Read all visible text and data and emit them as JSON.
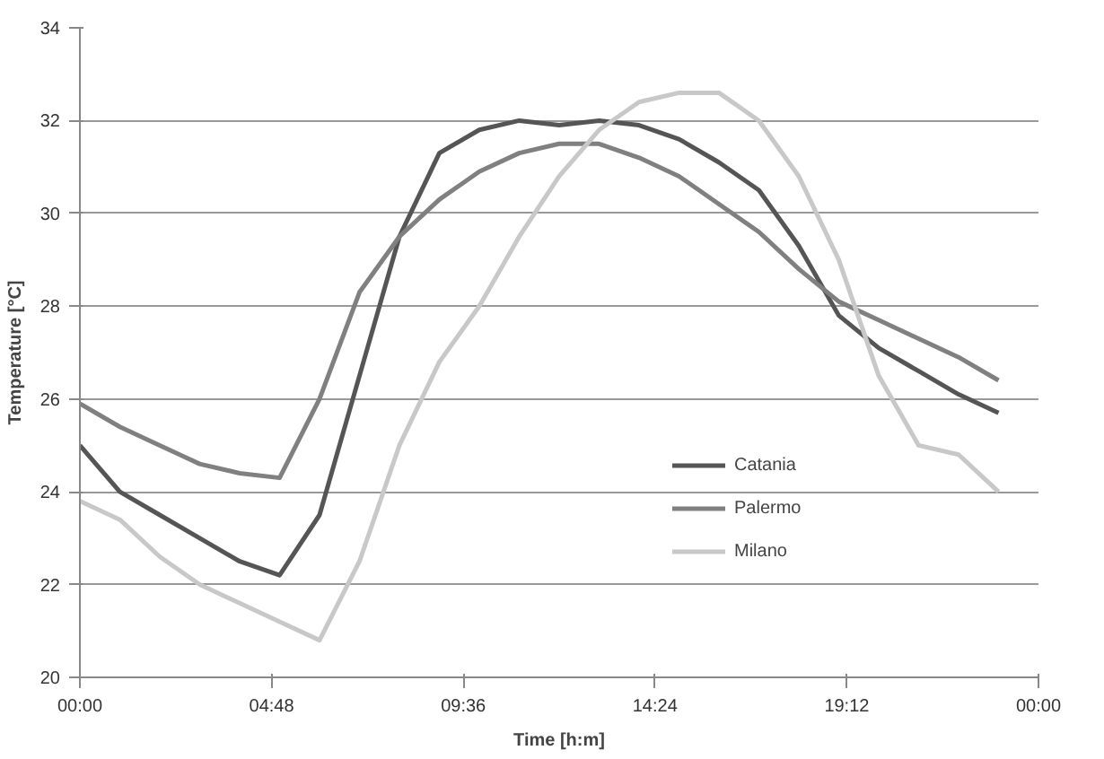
{
  "chart_data": {
    "type": "line",
    "xlabel": "Time [h:m]",
    "ylabel": "Temperature [°C]",
    "x": [
      0,
      1,
      2,
      3,
      4,
      5,
      6,
      7,
      8,
      9,
      10,
      11,
      12,
      13,
      14,
      15,
      16,
      17,
      18,
      19,
      20,
      21,
      22,
      23
    ],
    "series": [
      {
        "name": "Catania",
        "color": "#555555",
        "values": [
          25.0,
          24.0,
          23.5,
          23.0,
          22.5,
          22.2,
          23.5,
          26.5,
          29.5,
          31.3,
          31.8,
          32.0,
          31.9,
          32.0,
          31.9,
          31.6,
          31.1,
          30.5,
          29.3,
          27.8,
          27.1,
          26.6,
          26.1,
          25.7
        ]
      },
      {
        "name": "Palermo",
        "color": "#808080",
        "values": [
          25.9,
          25.4,
          25.0,
          24.6,
          24.4,
          24.3,
          26.0,
          28.3,
          29.5,
          30.3,
          30.9,
          31.3,
          31.5,
          31.5,
          31.2,
          30.8,
          30.2,
          29.6,
          28.8,
          28.1,
          27.7,
          27.3,
          26.9,
          26.4
        ]
      },
      {
        "name": "Milano",
        "color": "#c8c8c8",
        "values": [
          23.8,
          23.4,
          22.6,
          22.0,
          21.6,
          21.2,
          20.8,
          22.5,
          25.0,
          26.8,
          28.0,
          29.5,
          30.8,
          31.8,
          32.4,
          32.6,
          32.6,
          32.0,
          30.8,
          29.0,
          26.5,
          25.0,
          24.8,
          24.0
        ]
      }
    ],
    "xlim": [
      0,
      24
    ],
    "ylim": [
      20,
      34
    ],
    "xticks": [
      {
        "value": 0,
        "label": "00:00"
      },
      {
        "value": 4.8,
        "label": "04:48"
      },
      {
        "value": 9.6,
        "label": "09:36"
      },
      {
        "value": 14.4,
        "label": "14:24"
      },
      {
        "value": 19.2,
        "label": "19:12"
      },
      {
        "value": 24,
        "label": "00:00"
      }
    ],
    "yticks": [
      20,
      22,
      24,
      26,
      28,
      30,
      32,
      34
    ],
    "grid": "y",
    "legend": "bottom right",
    "marker": "none",
    "line_style": "solid"
  }
}
